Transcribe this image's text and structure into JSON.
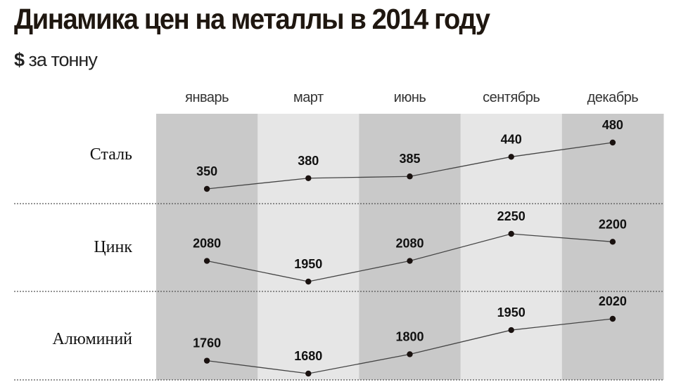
{
  "chart_data": {
    "type": "line",
    "title": "Динамика цен на металлы в 2014 году",
    "unit_symbol": "$",
    "unit_text": "за тонну",
    "categories": [
      "январь",
      "март",
      "июнь",
      "сентябрь",
      "декабрь"
    ],
    "series": [
      {
        "name": "Сталь",
        "values": [
          350,
          380,
          385,
          440,
          480
        ]
      },
      {
        "name": "Цинк",
        "values": [
          2080,
          1950,
          2080,
          2250,
          2200
        ]
      },
      {
        "name": "Алюминий",
        "values": [
          1760,
          1680,
          1800,
          1950,
          2020
        ]
      }
    ],
    "colors": {
      "band_dark": "#c9c9c9",
      "band_light": "#e6e6e6",
      "line": "#444444",
      "point": "#1a1210"
    },
    "grid": false,
    "legend": "none"
  }
}
